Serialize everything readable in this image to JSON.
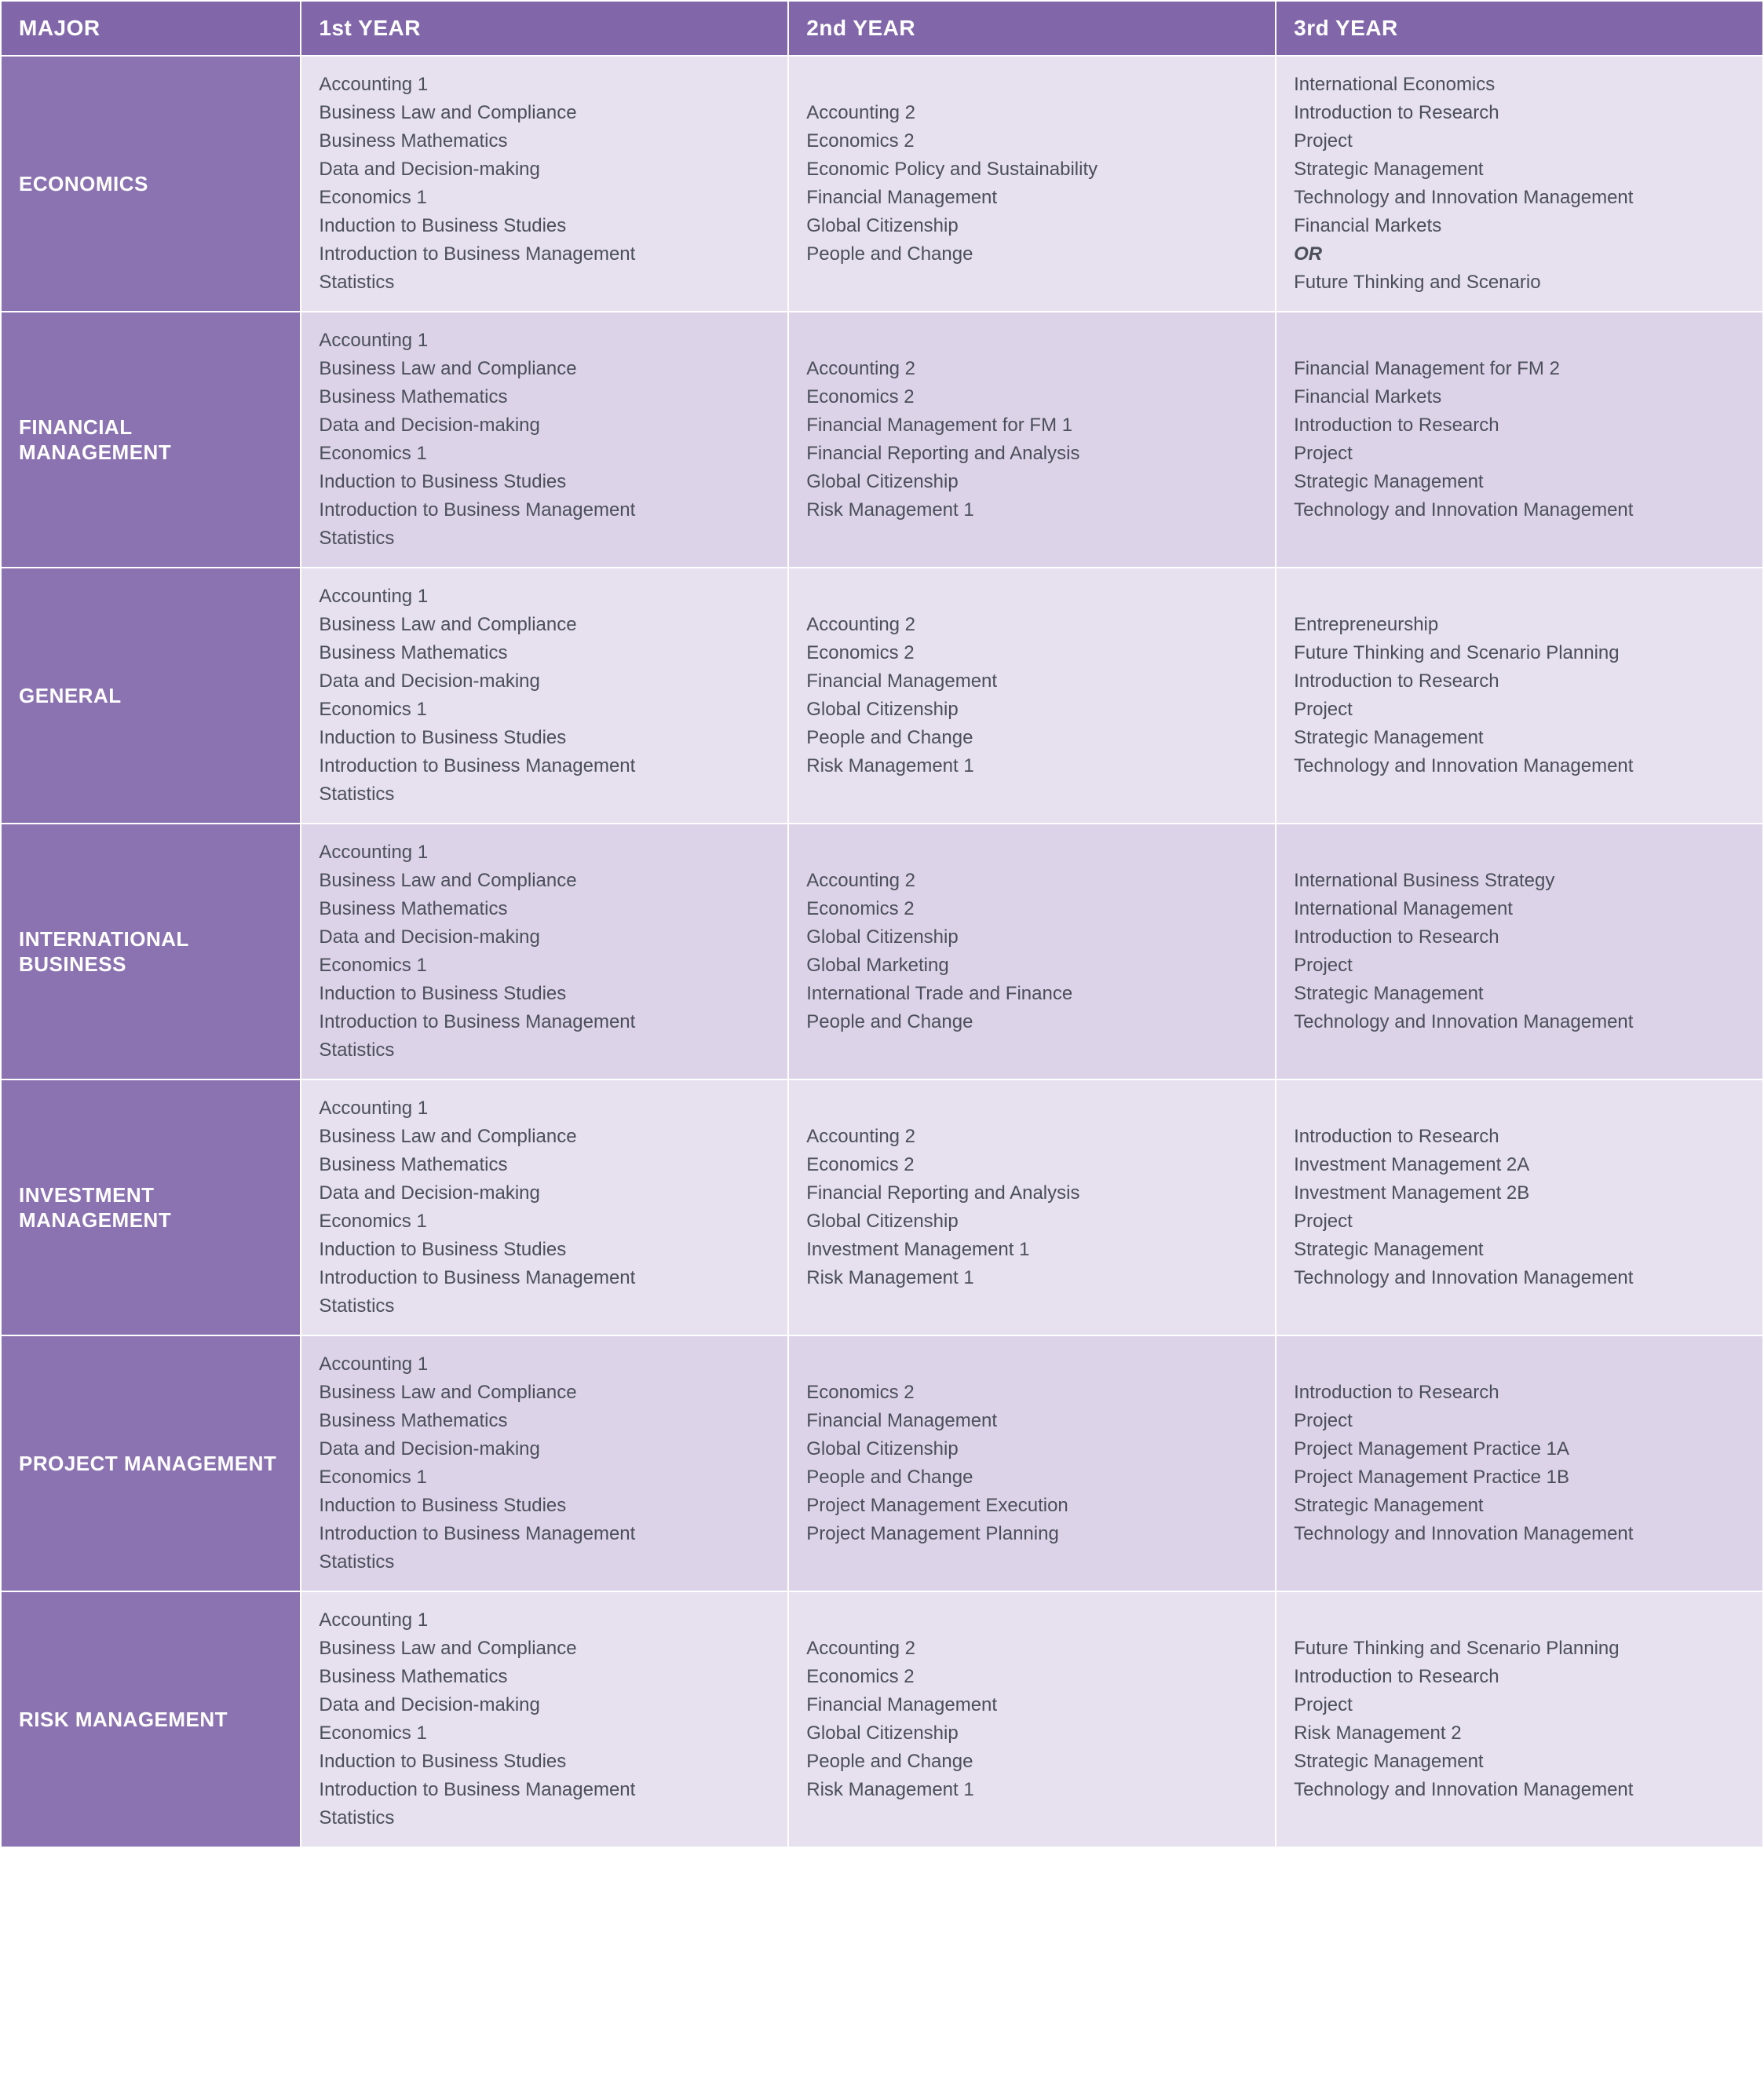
{
  "colors": {
    "header_bg": "#8166aa",
    "header_fg": "#ffffff",
    "major_bg": "#8b72b1",
    "major_fg": "#ffffff",
    "row_light": "#e6e0ef",
    "row_dark": "#dcd3e8",
    "cell_fg": "#4b4f5a"
  },
  "headers": {
    "major": "MAJOR",
    "year1": "1st YEAR",
    "year2": "2nd YEAR",
    "year3": "3rd YEAR"
  },
  "rows": [
    {
      "major": "ECONOMICS",
      "year1": [
        {
          "text": "Accounting 1"
        },
        {
          "text": "Business Law and Compliance"
        },
        {
          "text": "Business Mathematics"
        },
        {
          "text": "Data and Decision-making"
        },
        {
          "text": "Economics 1"
        },
        {
          "text": "Induction to Business Studies"
        },
        {
          "text": "Introduction to Business Management"
        },
        {
          "text": "Statistics"
        }
      ],
      "year2": [
        {
          "text": "Accounting 2"
        },
        {
          "text": "Economics 2"
        },
        {
          "text": "Economic Policy and Sustainability"
        },
        {
          "text": "Financial Management"
        },
        {
          "text": "Global Citizenship"
        },
        {
          "text": "People and Change"
        }
      ],
      "year3": [
        {
          "text": "International Economics"
        },
        {
          "text": "Introduction to Research"
        },
        {
          "text": "Project"
        },
        {
          "text": "Strategic Management"
        },
        {
          "text": "Technology and Innovation Management"
        },
        {
          "text": "Financial Markets"
        },
        {
          "text": "OR",
          "or": true
        },
        {
          "text": "Future Thinking and Scenario"
        }
      ]
    },
    {
      "major": "FINANCIAL MANAGEMENT",
      "year1": [
        {
          "text": "Accounting 1"
        },
        {
          "text": "Business Law and Compliance"
        },
        {
          "text": "Business Mathematics"
        },
        {
          "text": "Data and Decision-making"
        },
        {
          "text": "Economics 1"
        },
        {
          "text": "Induction to Business Studies"
        },
        {
          "text": "Introduction to Business Management"
        },
        {
          "text": "Statistics"
        }
      ],
      "year2": [
        {
          "text": "Accounting 2"
        },
        {
          "text": "Economics 2"
        },
        {
          "text": "Financial Management for FM 1"
        },
        {
          "text": "Financial Reporting and Analysis"
        },
        {
          "text": "Global Citizenship"
        },
        {
          "text": "Risk Management 1"
        }
      ],
      "year3": [
        {
          "text": "Financial Management for FM 2"
        },
        {
          "text": "Financial Markets"
        },
        {
          "text": "Introduction to Research"
        },
        {
          "text": "Project"
        },
        {
          "text": "Strategic Management"
        },
        {
          "text": "Technology and Innovation Management"
        }
      ]
    },
    {
      "major": "GENERAL",
      "year1": [
        {
          "text": "Accounting 1"
        },
        {
          "text": "Business Law and Compliance"
        },
        {
          "text": "Business Mathematics"
        },
        {
          "text": "Data and Decision-making"
        },
        {
          "text": "Economics 1"
        },
        {
          "text": "Induction to Business Studies"
        },
        {
          "text": "Introduction to Business Management"
        },
        {
          "text": "Statistics"
        }
      ],
      "year2": [
        {
          "text": "Accounting 2"
        },
        {
          "text": "Economics 2"
        },
        {
          "text": "Financial Management"
        },
        {
          "text": "Global Citizenship"
        },
        {
          "text": "People and Change"
        },
        {
          "text": "Risk Management 1"
        }
      ],
      "year3": [
        {
          "text": "Entrepreneurship"
        },
        {
          "text": "Future Thinking and Scenario Planning"
        },
        {
          "text": "Introduction to Research"
        },
        {
          "text": "Project"
        },
        {
          "text": "Strategic Management"
        },
        {
          "text": "Technology and Innovation Management"
        }
      ]
    },
    {
      "major": "INTERNATIONAL BUSINESS",
      "year1": [
        {
          "text": "Accounting 1"
        },
        {
          "text": "Business Law and Compliance"
        },
        {
          "text": "Business Mathematics"
        },
        {
          "text": "Data and Decision-making"
        },
        {
          "text": "Economics 1"
        },
        {
          "text": "Induction to Business Studies"
        },
        {
          "text": "Introduction to Business Management"
        },
        {
          "text": "Statistics"
        }
      ],
      "year2": [
        {
          "text": "Accounting 2"
        },
        {
          "text": "Economics 2"
        },
        {
          "text": "Global Citizenship"
        },
        {
          "text": "Global Marketing"
        },
        {
          "text": "International Trade and Finance"
        },
        {
          "text": "People and Change"
        }
      ],
      "year3": [
        {
          "text": "International Business Strategy"
        },
        {
          "text": "International Management"
        },
        {
          "text": "Introduction to Research"
        },
        {
          "text": "Project"
        },
        {
          "text": "Strategic Management"
        },
        {
          "text": "Technology and Innovation Management"
        }
      ]
    },
    {
      "major": "INVESTMENT MANAGEMENT",
      "year1": [
        {
          "text": "Accounting 1"
        },
        {
          "text": "Business Law and Compliance"
        },
        {
          "text": "Business Mathematics"
        },
        {
          "text": "Data and Decision-making"
        },
        {
          "text": "Economics 1"
        },
        {
          "text": "Induction to Business Studies"
        },
        {
          "text": "Introduction to Business Management"
        },
        {
          "text": "Statistics"
        }
      ],
      "year2": [
        {
          "text": "Accounting 2"
        },
        {
          "text": "Economics 2"
        },
        {
          "text": "Financial Reporting and Analysis"
        },
        {
          "text": "Global Citizenship"
        },
        {
          "text": "Investment Management 1"
        },
        {
          "text": "Risk Management 1"
        }
      ],
      "year3": [
        {
          "text": "Introduction to Research"
        },
        {
          "text": "Investment Management 2A"
        },
        {
          "text": "Investment Management 2B"
        },
        {
          "text": "Project"
        },
        {
          "text": "Strategic Management"
        },
        {
          "text": "Technology and Innovation Management"
        }
      ]
    },
    {
      "major": "PROJECT MANAGEMENT",
      "year1": [
        {
          "text": "Accounting 1"
        },
        {
          "text": "Business Law and Compliance"
        },
        {
          "text": "Business Mathematics"
        },
        {
          "text": "Data and Decision-making"
        },
        {
          "text": "Economics 1"
        },
        {
          "text": "Induction to Business Studies"
        },
        {
          "text": "Introduction to Business Management"
        },
        {
          "text": "Statistics"
        }
      ],
      "year2": [
        {
          "text": "Economics 2"
        },
        {
          "text": "Financial Management"
        },
        {
          "text": "Global Citizenship"
        },
        {
          "text": "People and Change"
        },
        {
          "text": "Project Management Execution"
        },
        {
          "text": "Project Management Planning"
        }
      ],
      "year3": [
        {
          "text": "Introduction to Research"
        },
        {
          "text": "Project"
        },
        {
          "text": "Project Management Practice 1A"
        },
        {
          "text": "Project Management Practice 1B"
        },
        {
          "text": "Strategic Management"
        },
        {
          "text": "Technology and Innovation Management"
        }
      ]
    },
    {
      "major": "RISK MANAGEMENT",
      "year1": [
        {
          "text": "Accounting 1"
        },
        {
          "text": "Business Law and Compliance"
        },
        {
          "text": "Business Mathematics"
        },
        {
          "text": "Data and Decision-making"
        },
        {
          "text": "Economics 1"
        },
        {
          "text": "Induction to Business Studies"
        },
        {
          "text": "Introduction to Business Management"
        },
        {
          "text": "Statistics"
        }
      ],
      "year2": [
        {
          "text": "Accounting 2"
        },
        {
          "text": "Economics 2"
        },
        {
          "text": "Financial Management"
        },
        {
          "text": "Global Citizenship"
        },
        {
          "text": "People and Change"
        },
        {
          "text": "Risk Management 1"
        }
      ],
      "year3": [
        {
          "text": "Future Thinking and Scenario Planning"
        },
        {
          "text": "Introduction to Research"
        },
        {
          "text": "Project"
        },
        {
          "text": "Risk Management 2"
        },
        {
          "text": "Strategic Management"
        },
        {
          "text": "Technology and Innovation Management"
        }
      ]
    }
  ]
}
